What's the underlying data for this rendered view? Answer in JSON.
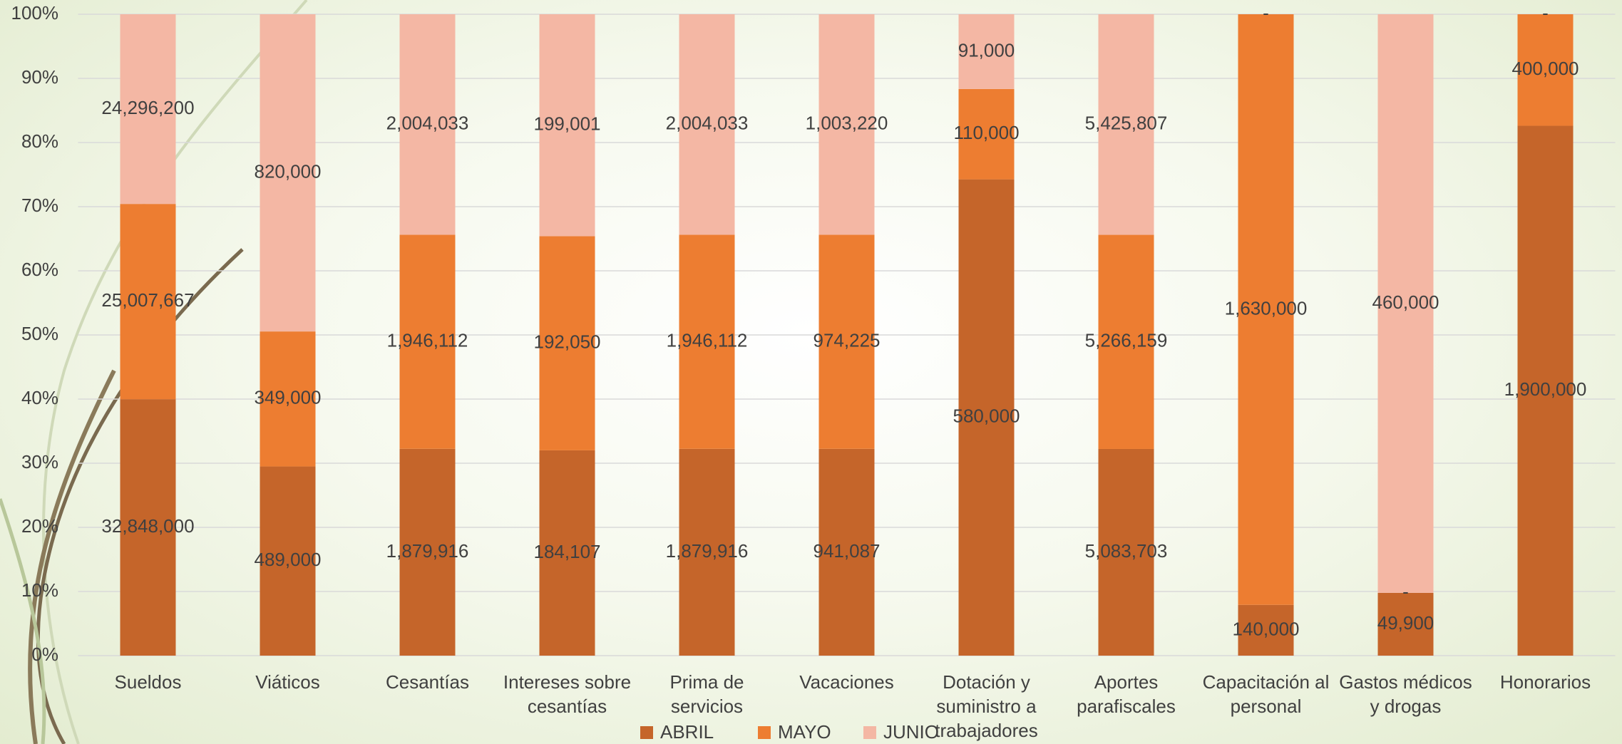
{
  "chart_data": {
    "type": "stacked_percent_bar",
    "categories": [
      "Sueldos",
      "Viáticos",
      "Cesantías",
      "Intereses sobre cesantías",
      "Prima de servicios",
      "Vacaciones",
      "Dotación y suministro a trabajadores",
      "Aportes parafiscales",
      "Capacitación al personal",
      "Gastos médicos y drogas",
      "Honorarios"
    ],
    "series": [
      {
        "name": "ABRIL",
        "color": "#c5652a",
        "values": [
          32848000,
          489000,
          1879916,
          184107,
          1879916,
          941087,
          580000,
          5083703,
          140000,
          49900,
          1900000
        ],
        "value_labels": [
          "32,848,000",
          "489,000",
          "1,879,916",
          "184,107",
          "1,879,916",
          "941,087",
          "580,000",
          "5,083,703",
          "140,000",
          "49,900",
          "1,900,000"
        ]
      },
      {
        "name": "MAYO",
        "color": "#ed7d31",
        "values": [
          25007667,
          349000,
          1946112,
          192050,
          1946112,
          974225,
          110000,
          5266159,
          1630000,
          0,
          400000
        ],
        "value_labels": [
          "25,007,667",
          "349,000",
          "1,946,112",
          "192,050",
          "1,946,112",
          "974,225",
          "110,000",
          "5,266,159",
          "1,630,000",
          "-",
          "400,000"
        ]
      },
      {
        "name": "JUNIO",
        "color": "#f4b7a4",
        "values": [
          24296200,
          820000,
          2004033,
          199001,
          2004033,
          1003220,
          91000,
          5425807,
          0,
          460000,
          0
        ],
        "value_labels": [
          "24,296,200",
          "820,000",
          "2,004,033",
          "199,001",
          "2,004,033",
          "1,003,220",
          "91,000",
          "5,425,807",
          "-",
          "460,000",
          "-"
        ]
      }
    ],
    "ylim": [
      0,
      100
    ],
    "yticks": [
      {
        "value": 0,
        "label": "0%"
      },
      {
        "value": 10,
        "label": "10%"
      },
      {
        "value": 20,
        "label": "20%"
      },
      {
        "value": 30,
        "label": "30%"
      },
      {
        "value": 40,
        "label": "40%"
      },
      {
        "value": 50,
        "label": "50%"
      },
      {
        "value": 60,
        "label": "60%"
      },
      {
        "value": 70,
        "label": "70%"
      },
      {
        "value": 80,
        "label": "80%"
      },
      {
        "value": 90,
        "label": "90%"
      },
      {
        "value": 100,
        "label": "100%"
      }
    ],
    "grid": true,
    "legend": "bottom"
  }
}
